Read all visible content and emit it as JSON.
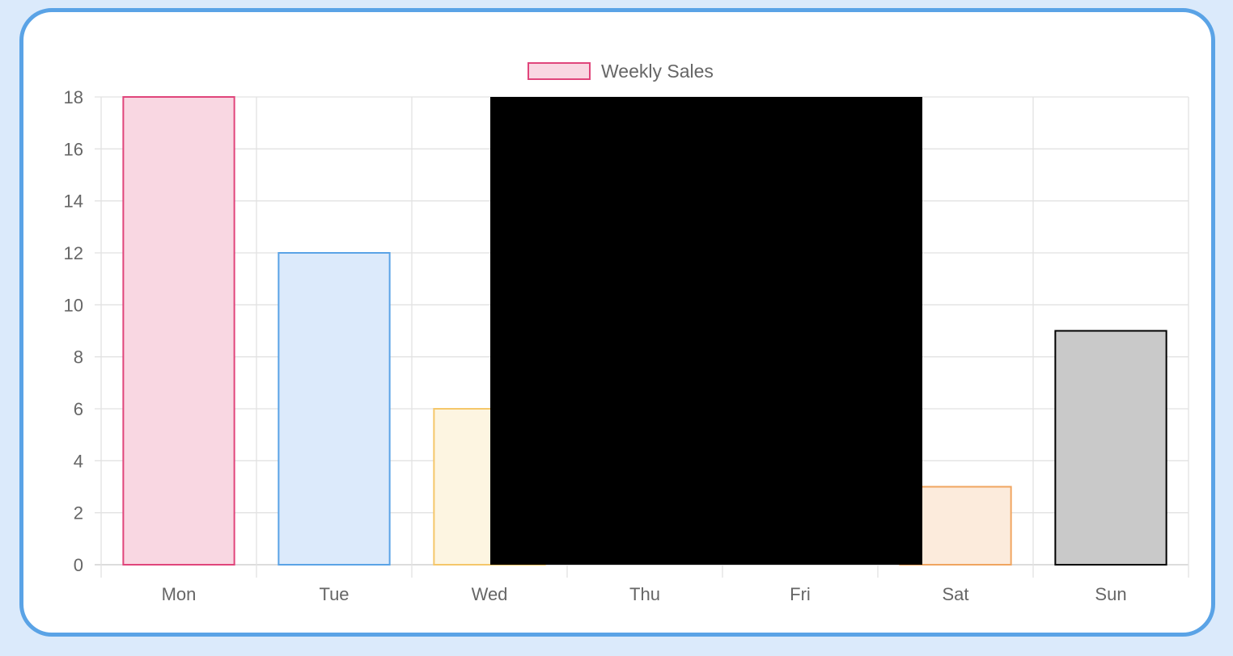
{
  "chart_data": {
    "type": "bar",
    "legend": [
      {
        "label": "Weekly Sales",
        "fill": "#f9d7e2",
        "stroke": "#e0457b"
      }
    ],
    "legend_position": "top-center",
    "categories": [
      "Mon",
      "Tue",
      "Wed",
      "Thu",
      "Fri",
      "Sat",
      "Sun"
    ],
    "series": [
      {
        "name": "Weekly Sales",
        "values": [
          18,
          12,
          6,
          null,
          null,
          3,
          9
        ],
        "fills": [
          "#f9d7e2",
          "#dceafb",
          "#fdf5e1",
          null,
          null,
          "#fcebdc",
          "#c9c9c9"
        ],
        "strokes": [
          "#e0457b",
          "#5aa3e6",
          "#f5c76a",
          null,
          null,
          "#f0a560",
          "#000000"
        ]
      }
    ],
    "ylim": [
      0,
      18
    ],
    "yticks": [
      "0",
      "2",
      "4",
      "6",
      "8",
      "10",
      "12",
      "14",
      "16",
      "18"
    ],
    "grid": true,
    "occluded_region_color": "#000000"
  }
}
